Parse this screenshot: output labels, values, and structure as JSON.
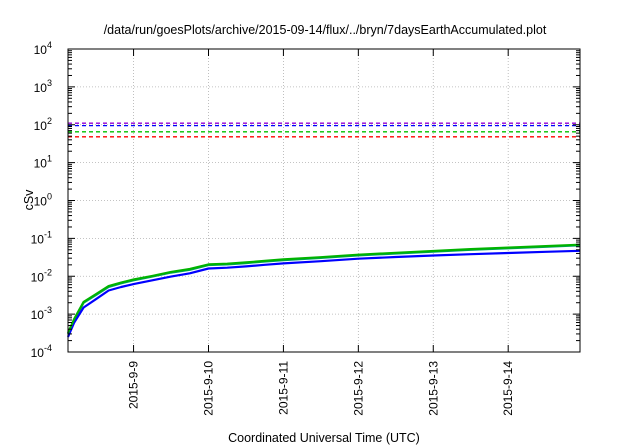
{
  "chart_data": {
    "type": "line",
    "title": "/data/run/goesPlots/archive/2015-09-14/flux/../bryn/7daysEarthAccumulated.plot",
    "xlabel": "Coordinated Universal Time (UTC)",
    "ylabel": "cSv",
    "y_scale": "log",
    "ylim": [
      0.0001,
      10000
    ],
    "xlim": [
      "2015-09-08T03:00",
      "2015-09-14T23:00"
    ],
    "grid": true,
    "y_ticks": [
      {
        "base": "10",
        "exp": "-4"
      },
      {
        "base": "10",
        "exp": "-3"
      },
      {
        "base": "10",
        "exp": "-2"
      },
      {
        "base": "10",
        "exp": "-1"
      },
      {
        "base": "10",
        "exp": "0"
      },
      {
        "base": "10",
        "exp": "1"
      },
      {
        "base": "10",
        "exp": "2"
      },
      {
        "base": "10",
        "exp": "3"
      },
      {
        "base": "10",
        "exp": "4"
      }
    ],
    "x_ticks": [
      "2015-9-9",
      "2015-9-10",
      "2015-9-11",
      "2015-9-12",
      "2015-9-13",
      "2015-9-14"
    ],
    "thresholds": [
      {
        "value": 110,
        "color": "#9400d3"
      },
      {
        "value": 95,
        "color": "#0000ff"
      },
      {
        "value": 65,
        "color": "#00c000"
      },
      {
        "value": 48,
        "color": "#ff0000"
      }
    ],
    "series": [
      {
        "color": "#009e73",
        "x": [
          "2015-09-08T03:00",
          "2015-09-08T05:00",
          "2015-09-08T08:00",
          "2015-09-08T12:00",
          "2015-09-08T16:00",
          "2015-09-08T20:00",
          "2015-09-09T00:00",
          "2015-09-09T06:00",
          "2015-09-09T12:00",
          "2015-09-09T18:00",
          "2015-09-10T00:00",
          "2015-09-10T06:00",
          "2015-09-10T12:00",
          "2015-09-10T18:00",
          "2015-09-11T00:00",
          "2015-09-11T12:00",
          "2015-09-12T00:00",
          "2015-09-12T12:00",
          "2015-09-13T00:00",
          "2015-09-13T12:00",
          "2015-09-14T00:00",
          "2015-09-14T12:00",
          "2015-09-14T23:00"
        ],
        "values": [
          0.0003,
          0.0007,
          0.002,
          0.0032,
          0.0052,
          0.0065,
          0.0078,
          0.0098,
          0.0125,
          0.0148,
          0.0198,
          0.0206,
          0.0222,
          0.0245,
          0.0265,
          0.0305,
          0.0355,
          0.0398,
          0.0445,
          0.0498,
          0.0548,
          0.0598,
          0.0655
        ]
      },
      {
        "color": "#0000ff",
        "x": [
          "2015-09-08T03:00",
          "2015-09-08T05:00",
          "2015-09-08T08:00",
          "2015-09-08T12:00",
          "2015-09-08T16:00",
          "2015-09-08T20:00",
          "2015-09-09T00:00",
          "2015-09-09T06:00",
          "2015-09-09T12:00",
          "2015-09-09T18:00",
          "2015-09-10T00:00",
          "2015-09-10T06:00",
          "2015-09-10T12:00",
          "2015-09-10T18:00",
          "2015-09-11T00:00",
          "2015-09-11T12:00",
          "2015-09-12T00:00",
          "2015-09-12T12:00",
          "2015-09-13T00:00",
          "2015-09-13T12:00",
          "2015-09-14T00:00",
          "2015-09-14T12:00",
          "2015-09-14T23:00"
        ],
        "values": [
          0.00025,
          0.0006,
          0.0015,
          0.0025,
          0.0042,
          0.0052,
          0.0062,
          0.0078,
          0.0098,
          0.012,
          0.016,
          0.0168,
          0.0182,
          0.02,
          0.0218,
          0.025,
          0.029,
          0.0322,
          0.0352,
          0.0382,
          0.0412,
          0.0442,
          0.047
        ]
      },
      {
        "color": "#00b300",
        "x": [
          "2015-09-08T03:00",
          "2015-09-08T05:00",
          "2015-09-08T08:00",
          "2015-09-08T12:00",
          "2015-09-08T16:00",
          "2015-09-08T20:00",
          "2015-09-09T00:00",
          "2015-09-09T06:00",
          "2015-09-09T12:00",
          "2015-09-09T18:00",
          "2015-09-10T00:00",
          "2015-09-10T06:00",
          "2015-09-10T12:00",
          "2015-09-10T18:00",
          "2015-09-11T00:00",
          "2015-09-11T12:00",
          "2015-09-12T00:00",
          "2015-09-12T12:00",
          "2015-09-13T00:00",
          "2015-09-13T12:00",
          "2015-09-14T00:00",
          "2015-09-14T12:00",
          "2015-09-14T23:00"
        ],
        "values": [
          0.00032,
          0.00075,
          0.0021,
          0.0034,
          0.0055,
          0.0068,
          0.0082,
          0.0102,
          0.013,
          0.0155,
          0.0205,
          0.0215,
          0.0232,
          0.0255,
          0.0278,
          0.0318,
          0.037,
          0.0415,
          0.0465,
          0.052,
          0.0572,
          0.0625,
          0.068
        ]
      }
    ]
  }
}
